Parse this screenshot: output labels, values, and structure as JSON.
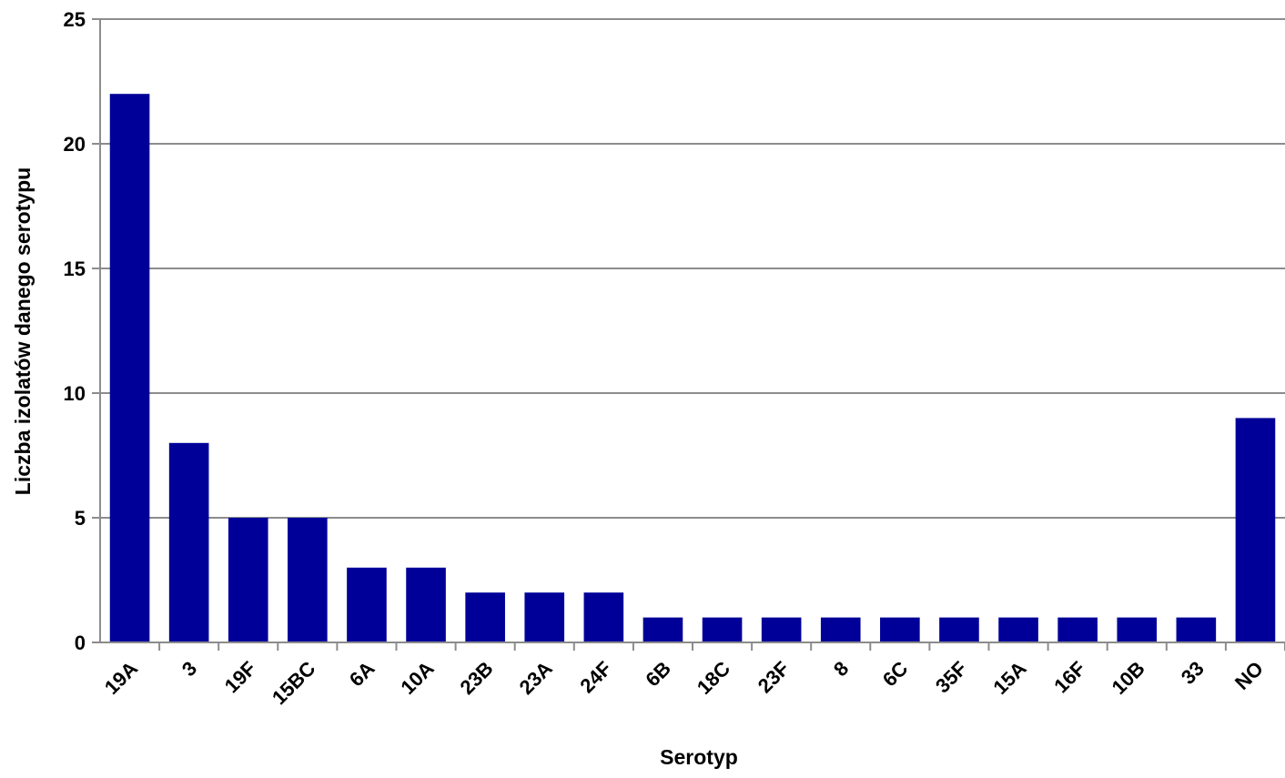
{
  "chart_data": {
    "type": "bar",
    "title": "",
    "xlabel": "Serotyp",
    "ylabel": "Liczba izolatów  danego serotypu",
    "categories": [
      "19A",
      "3",
      "19F",
      "15BC",
      "6A",
      "10A",
      "23B",
      "23A",
      "24F",
      "6B",
      "18C",
      "23F",
      "8",
      "6C",
      "35F",
      "15A",
      "16F",
      "10B",
      "33",
      "NO"
    ],
    "values": [
      22,
      8,
      5,
      5,
      3,
      3,
      2,
      2,
      2,
      1,
      1,
      1,
      1,
      1,
      1,
      1,
      1,
      1,
      1,
      9
    ],
    "ylim": [
      0,
      25
    ],
    "yticks": [
      0,
      5,
      10,
      15,
      20,
      25
    ],
    "grid": true,
    "legend": "none",
    "bar_color": "#000099"
  }
}
